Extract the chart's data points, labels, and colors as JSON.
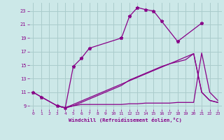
{
  "background_color": "#cce8e8",
  "grid_color": "#aacccc",
  "line_color": "#880088",
  "xlabel": "Windchill (Refroidissement éolien,°C)",
  "xlabel_color": "#880088",
  "tick_color": "#880088",
  "xlim": [
    -0.5,
    23.5
  ],
  "ylim": [
    8.5,
    24.2
  ],
  "yticks": [
    9,
    11,
    13,
    15,
    17,
    19,
    21,
    23
  ],
  "xticks": [
    0,
    1,
    2,
    3,
    4,
    5,
    6,
    7,
    8,
    9,
    10,
    11,
    12,
    13,
    14,
    15,
    16,
    17,
    18,
    19,
    20,
    21,
    22,
    23
  ],
  "curve1_x": [
    0,
    1,
    3,
    4,
    5,
    6,
    7,
    11,
    12,
    13,
    14,
    15,
    16,
    18,
    21
  ],
  "curve1_y": [
    11.0,
    10.3,
    9.0,
    8.7,
    14.8,
    16.0,
    17.5,
    19.0,
    22.2,
    23.5,
    23.2,
    23.0,
    21.5,
    18.5,
    21.2
  ],
  "curve2_x": [
    0,
    3,
    4,
    5,
    6,
    7,
    8,
    9,
    10,
    11,
    12,
    13,
    14,
    15,
    16,
    17,
    18,
    19,
    20,
    21,
    22,
    23
  ],
  "curve2_y": [
    11.0,
    9.0,
    8.7,
    9.0,
    9.2,
    9.2,
    9.2,
    9.2,
    9.2,
    9.2,
    9.3,
    9.3,
    9.4,
    9.4,
    9.4,
    9.4,
    9.5,
    9.5,
    9.5,
    16.8,
    11.0,
    9.8
  ],
  "curve3_x": [
    3,
    4,
    5,
    10,
    11,
    12,
    13,
    14,
    15,
    16,
    17,
    18,
    19,
    20,
    21,
    22,
    23
  ],
  "curve3_y": [
    9.0,
    8.7,
    9.0,
    11.5,
    12.0,
    12.8,
    13.3,
    13.8,
    14.3,
    14.8,
    15.2,
    15.5,
    15.8,
    16.7,
    11.0,
    9.8,
    9.5
  ],
  "curve4_x": [
    3,
    4,
    20,
    21,
    22,
    23
  ],
  "curve4_y": [
    9.0,
    8.7,
    16.7,
    11.0,
    9.8,
    9.5
  ]
}
